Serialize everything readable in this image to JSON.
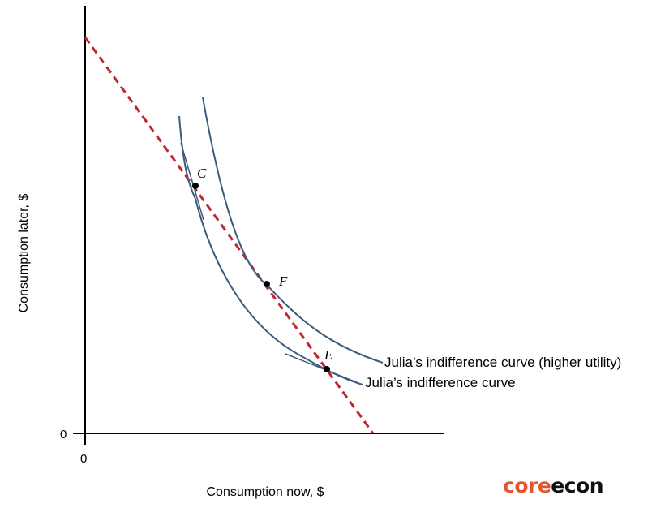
{
  "axes": {
    "x_label": "Consumption now, $",
    "y_label": "Consumption later, $",
    "x_origin": "0",
    "y_origin": "0"
  },
  "curves": {
    "lower_label": "Julia’s indifference curve",
    "higher_label": "Julia’s indifference curve (higher utility)"
  },
  "points": {
    "c": "C",
    "f": "F",
    "e": "E"
  },
  "colors": {
    "curve": "#3d5a80",
    "budget_line": "#c0272d",
    "logo_core": "#e4572e",
    "logo_econ": "#111111"
  },
  "logo": {
    "part1": "core",
    "part2": "econ"
  }
}
